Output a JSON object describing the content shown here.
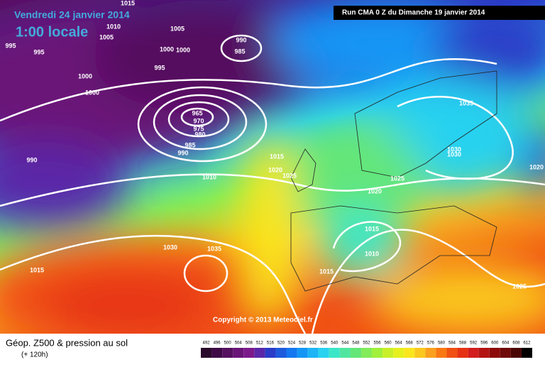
{
  "header": {
    "date": "Vendredi 24 janvier 2014",
    "time": "1:00 locale",
    "run": "Run CMA 0 Z du Dimanche 19 janvier 2014"
  },
  "copyright": "Copyright © 2013 Meteociel.fr",
  "footer": {
    "title": "Géop. Z500 & pression au sol",
    "lead": "(+ 120h)"
  },
  "isobar_labels": [
    "1015",
    "1010",
    "1005",
    "1005",
    "1000",
    "1000",
    "990",
    "985",
    "995",
    "995",
    "995",
    "1000",
    "1000",
    "965",
    "970",
    "975",
    "980",
    "985",
    "990",
    "990",
    "1015",
    "1020",
    "1025",
    "1010",
    "1035",
    "1030",
    "1030",
    "1020",
    "1025",
    "1020",
    "1015",
    "1010",
    "1015",
    "1030",
    "1035",
    "1015",
    "1025"
  ],
  "legend": {
    "levels": [
      492,
      496,
      500,
      504,
      508,
      512,
      516,
      520,
      524,
      528,
      532,
      536,
      540,
      544,
      548,
      552,
      556,
      560,
      564,
      568,
      572,
      576,
      580,
      584,
      588,
      592,
      596,
      600,
      604,
      608,
      612
    ],
    "colors": [
      "#2a0a2a",
      "#3d0a45",
      "#55105f",
      "#6a1478",
      "#7c1a8c",
      "#5a28a8",
      "#2a3cc8",
      "#1e5adc",
      "#1478f0",
      "#1496f5",
      "#1eb4f5",
      "#28d2f0",
      "#3ce6c8",
      "#50e6a0",
      "#64e678",
      "#82ec5a",
      "#a0f03c",
      "#c8f028",
      "#e6f01e",
      "#fae61e",
      "#fac81e",
      "#faa01e",
      "#fa7814",
      "#f05014",
      "#e63214",
      "#d21e1e",
      "#b41414",
      "#8c0a0a",
      "#6e0a0a",
      "#4a0505",
      "#000000"
    ]
  }
}
